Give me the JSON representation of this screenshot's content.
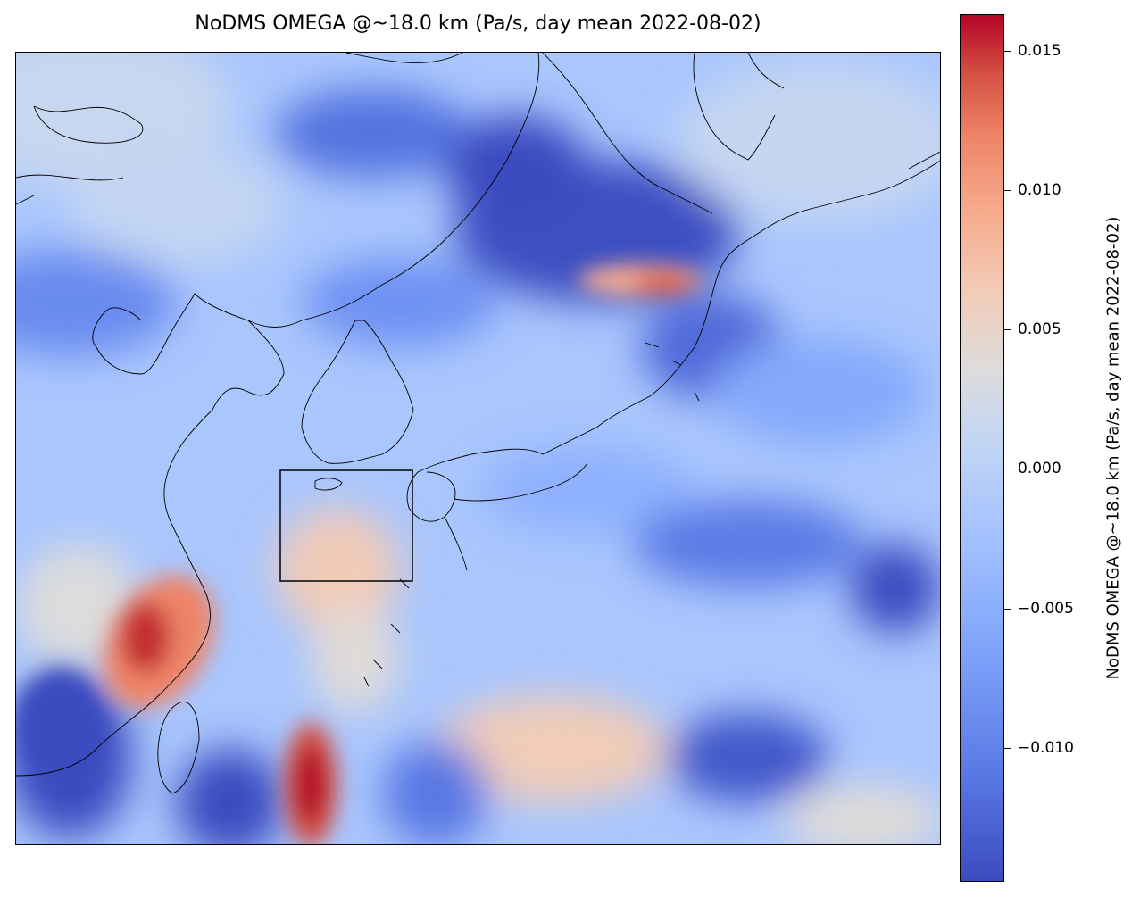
{
  "title": "NoDMS OMEGA @~18.0 km (Pa/s, day mean 2022-08-02)",
  "colorbar": {
    "label": "NoDMS OMEGA @~18.0 km (Pa/s, day mean 2022-08-02)",
    "colormap": "coolwarm",
    "range": [
      -0.0148,
      0.0163
    ],
    "ticks": [
      {
        "value": 0.015,
        "label": "0.015"
      },
      {
        "value": 0.01,
        "label": "0.010"
      },
      {
        "value": 0.005,
        "label": "0.005"
      },
      {
        "value": 0.0,
        "label": "0.000"
      },
      {
        "value": -0.005,
        "label": "−0.005"
      },
      {
        "value": -0.01,
        "label": "−0.010"
      }
    ],
    "colors": {
      "low": "#3b4cc0",
      "mid": "#dddcdc",
      "high": "#b40426"
    }
  },
  "map": {
    "region": "East Asia (China, Korea, Japan, Taiwan)",
    "highlight_box": true
  }
}
